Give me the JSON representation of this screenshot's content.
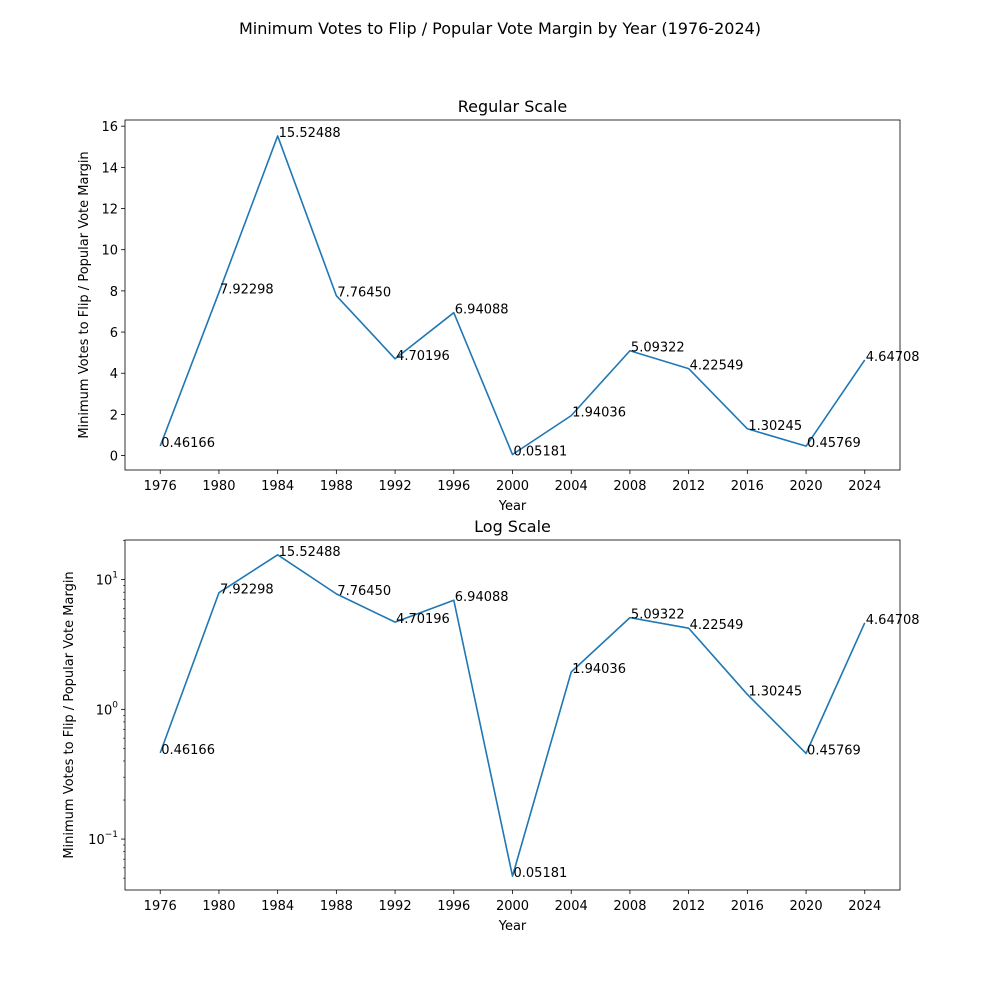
{
  "figure": {
    "title": "Minimum Votes to Flip / Popular Vote Margin by Year (1976-2024)"
  },
  "chart_data": [
    {
      "type": "line",
      "title": "Regular Scale",
      "xlabel": "Year",
      "ylabel": "Minimum Votes to Flip / Popular Vote Margin",
      "yscale": "linear",
      "ylim": [
        -0.7,
        16.3
      ],
      "yticks": [
        0,
        2,
        4,
        6,
        8,
        10,
        12,
        14,
        16
      ],
      "ytick_labels": [
        "0",
        "2",
        "4",
        "6",
        "8",
        "10",
        "12",
        "14",
        "16"
      ],
      "x": [
        1976,
        1980,
        1984,
        1988,
        1992,
        1996,
        2000,
        2004,
        2008,
        2012,
        2016,
        2020,
        2024
      ],
      "xtick_labels": [
        "1976",
        "1980",
        "1984",
        "1988",
        "1992",
        "1996",
        "2000",
        "2004",
        "2008",
        "2012",
        "2016",
        "2020",
        "2024"
      ],
      "values": [
        0.46166,
        7.92298,
        15.52488,
        7.7645,
        4.70196,
        6.94088,
        0.05181,
        1.94036,
        5.09322,
        4.22549,
        1.30245,
        0.45769,
        4.64708
      ],
      "data_labels": [
        "0.46166",
        "7.92298",
        "15.52488",
        "7.76450",
        "4.70196",
        "6.94088",
        "0.05181",
        "1.94036",
        "5.09322",
        "4.22549",
        "1.30245",
        "0.45769",
        "4.64708"
      ],
      "color": "#1f77b4",
      "grid": false
    },
    {
      "type": "line",
      "title": "Log Scale",
      "xlabel": "Year",
      "ylabel": "Minimum Votes to Flip / Popular Vote Margin",
      "yscale": "log",
      "ylim": [
        0.0405,
        20.2
      ],
      "yticks": [
        0.1,
        1,
        10
      ],
      "ytick_labels": [
        [
          "10",
          "−1"
        ],
        [
          "10",
          "0"
        ],
        [
          "10",
          "1"
        ]
      ],
      "x": [
        1976,
        1980,
        1984,
        1988,
        1992,
        1996,
        2000,
        2004,
        2008,
        2012,
        2016,
        2020,
        2024
      ],
      "xtick_labels": [
        "1976",
        "1980",
        "1984",
        "1988",
        "1992",
        "1996",
        "2000",
        "2004",
        "2008",
        "2012",
        "2016",
        "2020",
        "2024"
      ],
      "values": [
        0.46166,
        7.92298,
        15.52488,
        7.7645,
        4.70196,
        6.94088,
        0.05181,
        1.94036,
        5.09322,
        4.22549,
        1.30245,
        0.45769,
        4.64708
      ],
      "data_labels": [
        "0.46166",
        "7.92298",
        "15.52488",
        "7.76450",
        "4.70196",
        "6.94088",
        "0.05181",
        "1.94036",
        "5.09322",
        "4.22549",
        "1.30245",
        "0.45769",
        "4.64708"
      ],
      "color": "#1f77b4",
      "grid": false
    }
  ]
}
